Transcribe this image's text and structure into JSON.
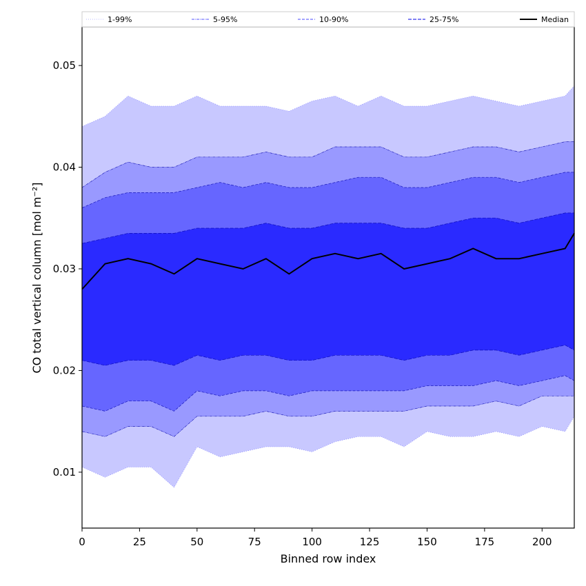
{
  "chart_data": {
    "type": "area",
    "xlabel": "Binned row index",
    "ylabel": "CO total vertical column [mol m⁻²]",
    "xlim": [
      0,
      214
    ],
    "ylim": [
      0.0045,
      0.0538
    ],
    "x_ticks": [
      0,
      25,
      50,
      75,
      100,
      125,
      150,
      175,
      200
    ],
    "y_ticks": [
      0.01,
      0.02,
      0.03,
      0.04,
      0.05
    ],
    "y_tick_labels": [
      "0.01",
      "0.02",
      "0.03",
      "0.04",
      "0.05"
    ],
    "legend_position": "top",
    "legend": [
      {
        "label": "1-99%",
        "color": "#c8c8ff",
        "style": "dotted"
      },
      {
        "label": "5-95%",
        "color": "#7777ff",
        "style": "dashdot"
      },
      {
        "label": "10-90%",
        "color": "#6a6aff",
        "style": "dashed"
      },
      {
        "label": "25-75%",
        "color": "#3333ee",
        "style": "dashed"
      },
      {
        "label": "Median",
        "color": "#000000",
        "style": "solid"
      }
    ],
    "x": [
      0,
      10,
      20,
      30,
      40,
      50,
      60,
      70,
      80,
      90,
      100,
      110,
      120,
      130,
      140,
      150,
      160,
      170,
      180,
      190,
      200,
      210,
      214
    ],
    "series": [
      {
        "name": "1-99%",
        "lower": [
          0.0105,
          0.0095,
          0.0105,
          0.0105,
          0.0085,
          0.0125,
          0.0115,
          0.012,
          0.0125,
          0.0125,
          0.012,
          0.013,
          0.0135,
          0.0135,
          0.0125,
          0.014,
          0.0135,
          0.0135,
          0.014,
          0.0135,
          0.0145,
          0.014,
          0.0155
        ],
        "upper": [
          0.044,
          0.045,
          0.047,
          0.046,
          0.046,
          0.047,
          0.046,
          0.046,
          0.046,
          0.0455,
          0.0465,
          0.047,
          0.046,
          0.047,
          0.046,
          0.046,
          0.0465,
          0.047,
          0.0465,
          0.046,
          0.0465,
          0.047,
          0.048
        ]
      },
      {
        "name": "5-95%",
        "lower": [
          0.014,
          0.0135,
          0.0145,
          0.0145,
          0.0135,
          0.0155,
          0.0155,
          0.0155,
          0.016,
          0.0155,
          0.0155,
          0.016,
          0.016,
          0.016,
          0.016,
          0.0165,
          0.0165,
          0.0165,
          0.017,
          0.0165,
          0.0175,
          0.0175,
          0.0175
        ],
        "upper": [
          0.038,
          0.0395,
          0.0405,
          0.04,
          0.04,
          0.041,
          0.041,
          0.041,
          0.0415,
          0.041,
          0.041,
          0.042,
          0.042,
          0.042,
          0.041,
          0.041,
          0.0415,
          0.042,
          0.042,
          0.0415,
          0.042,
          0.0425,
          0.0425
        ]
      },
      {
        "name": "10-90%",
        "lower": [
          0.0165,
          0.016,
          0.017,
          0.017,
          0.016,
          0.018,
          0.0175,
          0.018,
          0.018,
          0.0175,
          0.018,
          0.018,
          0.018,
          0.018,
          0.018,
          0.0185,
          0.0185,
          0.0185,
          0.019,
          0.0185,
          0.019,
          0.0195,
          0.019
        ],
        "upper": [
          0.036,
          0.037,
          0.0375,
          0.0375,
          0.0375,
          0.038,
          0.0385,
          0.038,
          0.0385,
          0.038,
          0.038,
          0.0385,
          0.039,
          0.039,
          0.038,
          0.038,
          0.0385,
          0.039,
          0.039,
          0.0385,
          0.039,
          0.0395,
          0.0395
        ]
      },
      {
        "name": "25-75%",
        "lower": [
          0.021,
          0.0205,
          0.021,
          0.021,
          0.0205,
          0.0215,
          0.021,
          0.0215,
          0.0215,
          0.021,
          0.021,
          0.0215,
          0.0215,
          0.0215,
          0.021,
          0.0215,
          0.0215,
          0.022,
          0.022,
          0.0215,
          0.022,
          0.0225,
          0.022
        ],
        "upper": [
          0.0325,
          0.033,
          0.0335,
          0.0335,
          0.0335,
          0.034,
          0.034,
          0.034,
          0.0345,
          0.034,
          0.034,
          0.0345,
          0.0345,
          0.0345,
          0.034,
          0.034,
          0.0345,
          0.035,
          0.035,
          0.0345,
          0.035,
          0.0355,
          0.0355
        ]
      },
      {
        "name": "Median",
        "values": [
          0.028,
          0.0305,
          0.031,
          0.0305,
          0.0295,
          0.031,
          0.0305,
          0.03,
          0.031,
          0.0295,
          0.031,
          0.0315,
          0.031,
          0.0315,
          0.03,
          0.0305,
          0.031,
          0.032,
          0.031,
          0.031,
          0.0315,
          0.032,
          0.0335
        ]
      }
    ],
    "band_colors": [
      "#c8c8ff",
      "#9999ff",
      "#6666ff",
      "#2a2aff"
    ],
    "grid": false
  }
}
